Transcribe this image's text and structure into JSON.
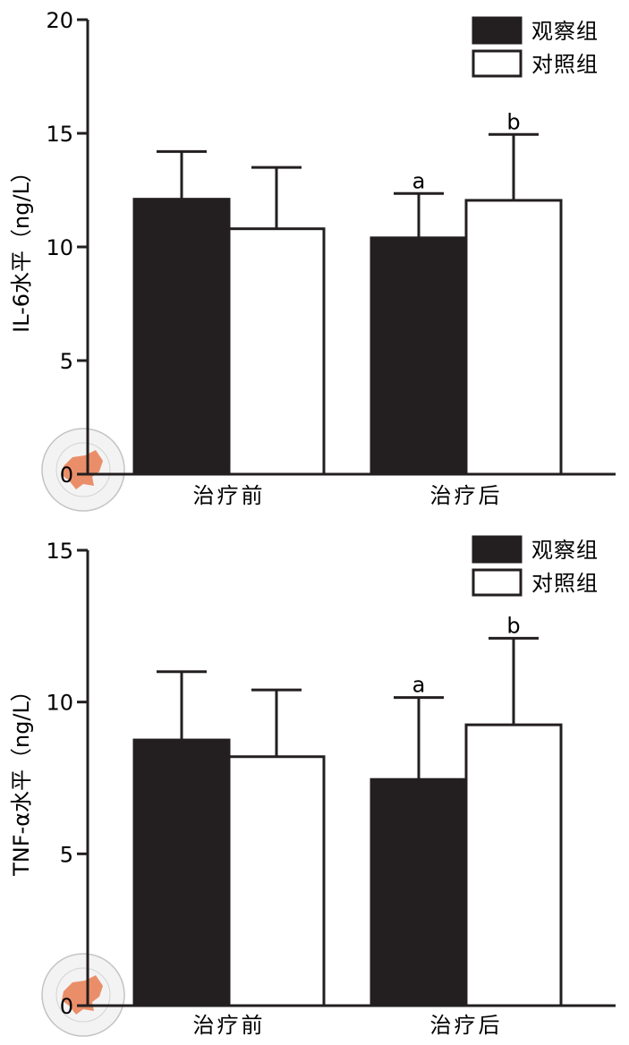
{
  "chart_data": [
    {
      "type": "bar",
      "categories": [
        "治疗前",
        "治疗后"
      ],
      "series": [
        {
          "name": "观察组",
          "values": [
            12.1,
            10.4
          ],
          "errors": [
            2.1,
            1.95
          ],
          "sig": [
            "",
            "a"
          ],
          "fill": "#231f20"
        },
        {
          "name": "对照组",
          "values": [
            10.8,
            12.05
          ],
          "errors": [
            2.7,
            2.9
          ],
          "sig": [
            "",
            "b"
          ],
          "fill": "#ffffff"
        }
      ],
      "title": "",
      "xlabel": "",
      "ylabel": "IL-6水平（ng/L）",
      "ylim": [
        0,
        20
      ],
      "yticks": [
        0,
        5,
        10,
        15,
        20
      ],
      "grid": false,
      "legend": "top-right"
    },
    {
      "type": "bar",
      "categories": [
        "治疗前",
        "治疗后"
      ],
      "series": [
        {
          "name": "观察组",
          "values": [
            8.75,
            7.45
          ],
          "errors": [
            2.25,
            2.7
          ],
          "sig": [
            "",
            "a"
          ],
          "fill": "#231f20"
        },
        {
          "name": "对照组",
          "values": [
            8.2,
            9.25
          ],
          "errors": [
            2.2,
            2.85
          ],
          "sig": [
            "",
            "b"
          ],
          "fill": "#ffffff"
        }
      ],
      "title": "",
      "xlabel": "",
      "ylabel": "TNF-α水平（ng/L）",
      "ylim": [
        0,
        15
      ],
      "yticks": [
        0,
        5,
        10,
        15
      ],
      "grid": false,
      "legend": "top-right"
    }
  ],
  "watermark": {
    "name": "chinese-medical-association-seal",
    "text": "中华医学会 CHINESE MEDICAL ASSOCIATION 1915",
    "color": "#e8825a"
  }
}
